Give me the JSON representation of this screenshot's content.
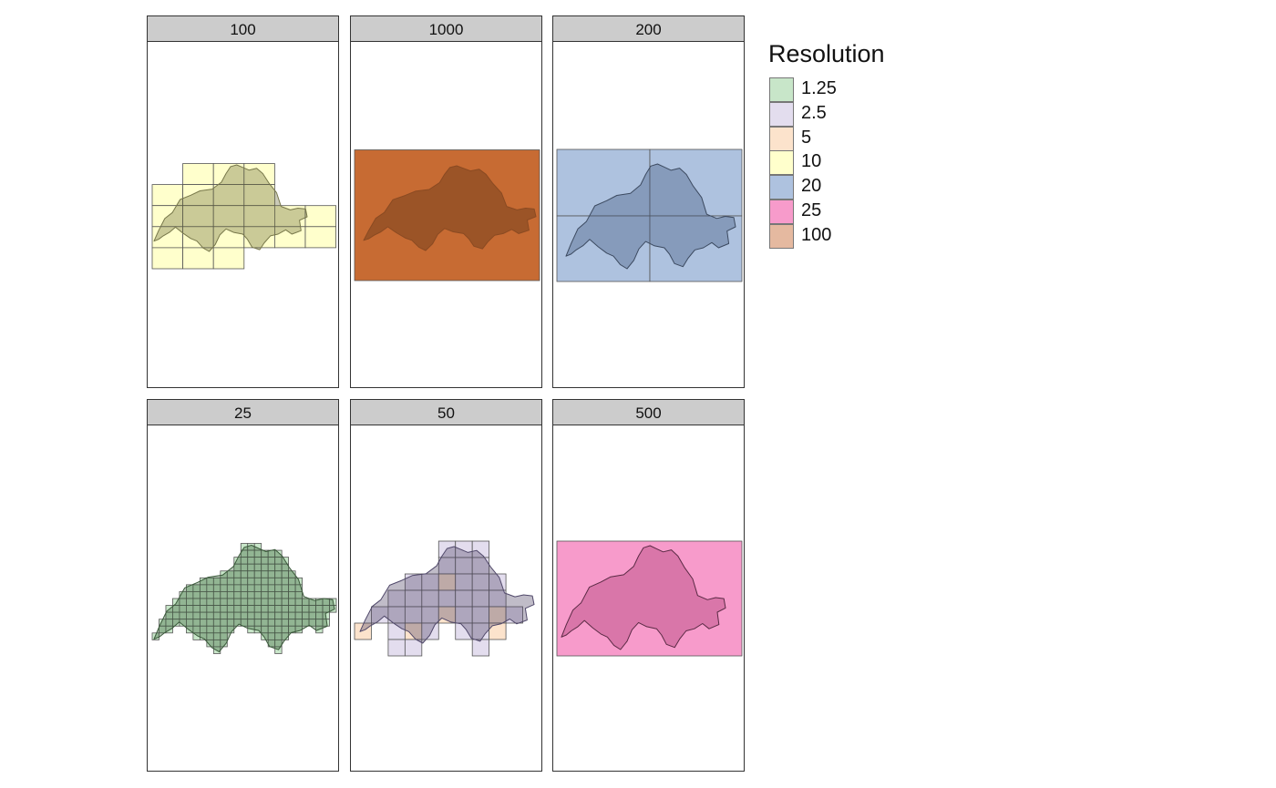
{
  "panels": [
    {
      "label": "100",
      "fill": "#FFFFCC",
      "kind": "tiles100"
    },
    {
      "label": "1000",
      "fill": "#C76B33",
      "kind": "single"
    },
    {
      "label": "200",
      "fill": "#AEC2DF",
      "kind": "quad"
    },
    {
      "label": "25",
      "fill": "#C8E6C9",
      "kind": "tiles25"
    },
    {
      "label": "50",
      "fill": "#E3DDEE",
      "alt_fill": "#FCE3CC",
      "kind": "tiles50"
    },
    {
      "label": "500",
      "fill": "#F79BCB",
      "kind": "single"
    }
  ],
  "legend": {
    "title": "Resolution",
    "items": [
      {
        "label": "1.25",
        "color": "#C8E6C9"
      },
      {
        "label": "2.5",
        "color": "#E3DDEE"
      },
      {
        "label": "5",
        "color": "#FCE3CC"
      },
      {
        "label": "10",
        "color": "#FFFFCC"
      },
      {
        "label": "20",
        "color": "#AEC2DF"
      },
      {
        "label": "25",
        "color": "#F79BCB"
      },
      {
        "label": "100",
        "color": "#E5B9A0"
      }
    ]
  }
}
